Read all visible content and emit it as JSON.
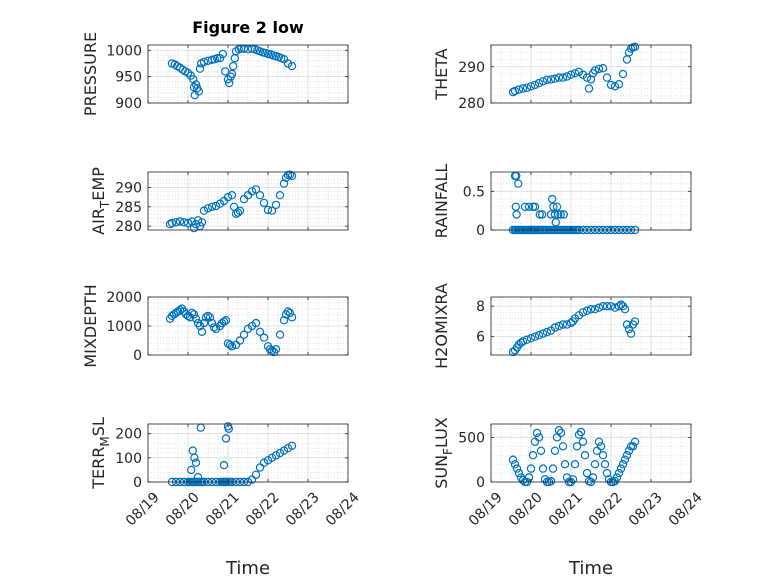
{
  "chart_data": [
    {
      "type": "scatter",
      "title": "Figure 2 low",
      "ylabel": "PRESSURE",
      "ylim": [
        900,
        1010
      ],
      "yticks": [
        900,
        950,
        1000
      ],
      "yticklabels": [
        "900",
        "950",
        "1000"
      ],
      "xlim": [
        0,
        5
      ],
      "xticks": [
        0,
        1,
        2,
        3,
        4,
        5
      ],
      "xticklabels": [
        "08/19",
        "08/20",
        "08/21",
        "08/22",
        "08/23",
        "08/24"
      ],
      "show_xticklabels": false,
      "xlabel": "",
      "grid": true,
      "color": "#0072BD",
      "x": [
        0.6,
        0.67,
        0.73,
        0.8,
        0.87,
        0.93,
        1.0,
        1.07,
        1.13,
        1.15,
        1.17,
        1.2,
        1.23,
        1.27,
        1.3,
        1.33,
        1.4,
        1.5,
        1.6,
        1.67,
        1.73,
        1.8,
        1.87,
        1.93,
        2.0,
        2.03,
        2.07,
        2.1,
        2.13,
        2.17,
        2.2,
        2.27,
        2.33,
        2.4,
        2.5,
        2.6,
        2.67,
        2.73,
        2.8,
        2.87,
        2.93,
        3.0,
        3.07,
        3.13,
        3.2,
        3.27,
        3.33,
        3.4,
        3.5,
        3.6
      ],
      "y": [
        975,
        973,
        970,
        967,
        963,
        960,
        957,
        952,
        945,
        930,
        915,
        935,
        928,
        922,
        965,
        975,
        978,
        980,
        982,
        983,
        985,
        985,
        993,
        960,
        945,
        938,
        950,
        955,
        970,
        985,
        998,
        1002,
        1003,
        1003,
        1002,
        1003,
        1002,
        1000,
        998,
        996,
        995,
        993,
        992,
        990,
        989,
        987,
        985,
        983,
        975,
        970
      ]
    },
    {
      "type": "scatter",
      "title": "",
      "ylabel": "THETA",
      "ylim": [
        280,
        296
      ],
      "yticks": [
        280,
        290
      ],
      "yticklabels": [
        "280",
        "290"
      ],
      "xlim": [
        0,
        5
      ],
      "xticks": [
        0,
        1,
        2,
        3,
        4,
        5
      ],
      "xticklabels": [
        "08/19",
        "08/20",
        "08/21",
        "08/22",
        "08/23",
        "08/24"
      ],
      "show_xticklabels": false,
      "xlabel": "",
      "grid": true,
      "color": "#0072BD",
      "x": [
        0.55,
        0.6,
        0.7,
        0.8,
        0.9,
        1.0,
        1.1,
        1.2,
        1.3,
        1.4,
        1.5,
        1.6,
        1.7,
        1.8,
        1.9,
        2.0,
        2.1,
        2.2,
        2.3,
        2.4,
        2.45,
        2.5,
        2.55,
        2.6,
        2.7,
        2.8,
        2.9,
        3.0,
        3.1,
        3.2,
        3.3,
        3.4,
        3.45,
        3.5,
        3.55,
        3.6
      ],
      "y": [
        283,
        283.3,
        283.7,
        284,
        284.2,
        284.6,
        285,
        285.5,
        286,
        286.4,
        286.5,
        286.7,
        287,
        287,
        287.3,
        287.8,
        288.2,
        288.6,
        287.8,
        287,
        284,
        286.5,
        288.2,
        289,
        289.4,
        289.6,
        287,
        285,
        284.6,
        285.2,
        288,
        292,
        294,
        295,
        295.3,
        295.5
      ]
    },
    {
      "type": "scatter",
      "title": "",
      "ylabel": "AIR_TEMP",
      "ylabel_parts": [
        "AIR",
        "T",
        "EMP"
      ],
      "ylim": [
        279,
        294
      ],
      "yticks": [
        280,
        285,
        290
      ],
      "yticklabels": [
        "280",
        "285",
        "290"
      ],
      "xlim": [
        0,
        5
      ],
      "xticks": [
        0,
        1,
        2,
        3,
        4,
        5
      ],
      "xticklabels": [
        "08/19",
        "08/20",
        "08/21",
        "08/22",
        "08/23",
        "08/24"
      ],
      "show_xticklabels": false,
      "xlabel": "",
      "grid": true,
      "color": "#0072BD",
      "x": [
        0.55,
        0.6,
        0.7,
        0.8,
        0.9,
        1.0,
        1.1,
        1.15,
        1.2,
        1.25,
        1.3,
        1.35,
        1.4,
        1.5,
        1.6,
        1.7,
        1.8,
        1.9,
        2.0,
        2.1,
        2.15,
        2.2,
        2.25,
        2.3,
        2.4,
        2.5,
        2.6,
        2.7,
        2.8,
        2.9,
        3.0,
        3.1,
        3.2,
        3.3,
        3.4,
        3.45,
        3.5,
        3.55,
        3.6
      ],
      "y": [
        280.5,
        280.8,
        281,
        281.2,
        281,
        280.8,
        281.2,
        279.5,
        280.5,
        281.5,
        280,
        281,
        284,
        284.6,
        285,
        285.2,
        285.8,
        286.5,
        287.5,
        288,
        285,
        283.2,
        283.5,
        284,
        287,
        288,
        289,
        289.5,
        288,
        286,
        284.2,
        284,
        285.5,
        288,
        291,
        292.5,
        293.2,
        293.3,
        293
      ]
    },
    {
      "type": "scatter",
      "title": "",
      "ylabel": "RAINFALL",
      "ylim": [
        0,
        0.75
      ],
      "yticks": [
        0,
        0.5
      ],
      "yticklabels": [
        "0",
        "0.5"
      ],
      "xlim": [
        0,
        5
      ],
      "xticks": [
        0,
        1,
        2,
        3,
        4,
        5
      ],
      "xticklabels": [
        "08/19",
        "08/20",
        "08/21",
        "08/22",
        "08/23",
        "08/24"
      ],
      "show_xticklabels": false,
      "xlabel": "",
      "grid": true,
      "color": "#0072BD",
      "x": [
        0.55,
        0.6,
        0.63,
        0.67,
        0.7,
        0.73,
        0.76,
        0.8,
        0.84,
        0.88,
        0.92,
        0.96,
        1.0,
        1.02,
        1.05,
        1.08,
        1.1,
        1.14,
        1.18,
        1.2,
        1.24,
        1.28,
        1.3,
        1.35,
        1.4,
        1.45,
        1.5,
        1.55,
        1.6,
        1.65,
        1.7,
        1.75,
        1.8,
        1.85,
        1.9,
        1.95,
        2.0,
        2.05,
        2.1,
        2.15,
        2.2,
        2.3,
        2.4,
        2.5,
        2.6,
        2.7,
        2.8,
        2.9,
        3.0,
        3.1,
        3.2,
        3.3,
        3.4,
        3.5,
        3.6,
        0.6,
        0.63,
        0.68,
        0.62,
        0.64,
        0.85,
        0.95,
        1.05,
        1.1,
        1.22,
        1.28,
        1.5,
        1.53,
        1.56,
        1.6,
        1.62,
        1.65,
        1.68,
        1.74,
        1.82
      ],
      "y": [
        0,
        0,
        0,
        0,
        0,
        0,
        0,
        0,
        0,
        0,
        0,
        0,
        0,
        0,
        0,
        0,
        0,
        0,
        0,
        0,
        0,
        0,
        0,
        0,
        0,
        0,
        0,
        0,
        0,
        0,
        0,
        0,
        0,
        0,
        0,
        0,
        0,
        0,
        0,
        0,
        0,
        0,
        0,
        0,
        0,
        0,
        0,
        0,
        0,
        0,
        0,
        0,
        0,
        0,
        0,
        0.7,
        0.7,
        0.6,
        0.3,
        0.2,
        0.3,
        0.3,
        0.3,
        0.3,
        0.2,
        0.2,
        0.2,
        0.4,
        0.3,
        0.2,
        0.1,
        0.3,
        0.2,
        0.2,
        0.2
      ]
    },
    {
      "type": "scatter",
      "title": "",
      "ylabel": "MIXDEPTH",
      "ylim": [
        0,
        2000
      ],
      "yticks": [
        0,
        1000,
        2000
      ],
      "yticklabels": [
        "0",
        "1000",
        "2000"
      ],
      "xlim": [
        0,
        5
      ],
      "xticks": [
        0,
        1,
        2,
        3,
        4,
        5
      ],
      "xticklabels": [
        "08/19",
        "08/20",
        "08/21",
        "08/22",
        "08/23",
        "08/24"
      ],
      "show_xticklabels": false,
      "xlabel": "",
      "grid": true,
      "color": "#0072BD",
      "x": [
        0.55,
        0.6,
        0.65,
        0.7,
        0.75,
        0.8,
        0.85,
        0.9,
        0.95,
        1.0,
        1.05,
        1.1,
        1.15,
        1.2,
        1.25,
        1.3,
        1.35,
        1.4,
        1.45,
        1.5,
        1.55,
        1.6,
        1.65,
        1.7,
        1.8,
        1.85,
        1.9,
        1.95,
        2.0,
        2.05,
        2.1,
        2.2,
        2.3,
        2.4,
        2.5,
        2.6,
        2.7,
        2.8,
        2.9,
        3.0,
        3.05,
        3.1,
        3.15,
        3.2,
        3.3,
        3.4,
        3.45,
        3.5,
        3.55,
        3.6
      ],
      "y": [
        1250,
        1350,
        1400,
        1450,
        1500,
        1550,
        1600,
        1500,
        1400,
        1350,
        1300,
        1450,
        1400,
        1250,
        1100,
        1000,
        800,
        1100,
        1300,
        1350,
        1300,
        1100,
        950,
        900,
        1000,
        1100,
        1150,
        1200,
        400,
        350,
        300,
        350,
        500,
        700,
        900,
        1000,
        1100,
        800,
        600,
        300,
        200,
        150,
        100,
        200,
        700,
        1200,
        1400,
        1500,
        1450,
        1300
      ]
    },
    {
      "type": "scatter",
      "title": "",
      "ylabel": "H2OMIXRA",
      "ylim": [
        4.8,
        8.6
      ],
      "yticks": [
        6,
        8
      ],
      "yticklabels": [
        "6",
        "8"
      ],
      "xlim": [
        0,
        5
      ],
      "xticks": [
        0,
        1,
        2,
        3,
        4,
        5
      ],
      "xticklabels": [
        "08/19",
        "08/20",
        "08/21",
        "08/22",
        "08/23",
        "08/24"
      ],
      "show_xticklabels": false,
      "xlabel": "",
      "grid": true,
      "color": "#0072BD",
      "x": [
        0.55,
        0.6,
        0.65,
        0.7,
        0.75,
        0.8,
        0.9,
        1.0,
        1.1,
        1.2,
        1.3,
        1.4,
        1.5,
        1.6,
        1.7,
        1.8,
        1.9,
        2.0,
        2.05,
        2.1,
        2.2,
        2.3,
        2.4,
        2.5,
        2.6,
        2.7,
        2.8,
        2.9,
        3.0,
        3.1,
        3.2,
        3.25,
        3.3,
        3.35,
        3.4,
        3.45,
        3.5,
        3.55,
        3.6
      ],
      "y": [
        5,
        5.1,
        5.3,
        5.5,
        5.6,
        5.7,
        5.8,
        5.9,
        6.0,
        6.1,
        6.2,
        6.3,
        6.4,
        6.6,
        6.7,
        6.8,
        6.8,
        6.9,
        7.0,
        7.2,
        7.4,
        7.6,
        7.7,
        7.8,
        7.8,
        7.9,
        8.0,
        8.0,
        8.0,
        7.9,
        8.0,
        8.1,
        8.0,
        7.8,
        6.8,
        6.5,
        6.2,
        6.8,
        7.0
      ]
    },
    {
      "type": "scatter",
      "title": "",
      "ylabel": "TERR_MSL",
      "ylabel_parts": [
        "TERR",
        "M",
        "SL"
      ],
      "ylim": [
        0,
        240
      ],
      "yticks": [
        0,
        100,
        200
      ],
      "yticklabels": [
        "0",
        "100",
        "200"
      ],
      "xlim": [
        0,
        5
      ],
      "xticks": [
        0,
        1,
        2,
        3,
        4,
        5
      ],
      "xticklabels": [
        "08/19",
        "08/20",
        "08/21",
        "08/22",
        "08/23",
        "08/24"
      ],
      "show_xticklabels": true,
      "xlabel": "Time",
      "grid": true,
      "color": "#0072BD",
      "x": [
        0.6,
        0.7,
        0.8,
        0.9,
        1.0,
        1.05,
        1.1,
        1.12,
        1.15,
        1.2,
        1.25,
        1.3,
        1.35,
        1.4,
        1.5,
        1.6,
        1.7,
        1.8,
        1.85,
        1.88,
        1.9,
        1.93,
        1.96,
        2.0,
        2.05,
        2.1,
        2.2,
        2.3,
        2.4,
        2.5,
        2.6,
        2.7,
        2.8,
        2.9,
        3.0,
        3.1,
        3.2,
        3.3,
        3.4,
        3.5,
        3.6,
        1.08,
        1.12,
        1.16,
        1.2,
        1.25,
        1.32,
        1.9,
        1.95,
        2.0,
        2.02
      ],
      "y": [
        0,
        0,
        0,
        0,
        0,
        0,
        0,
        0,
        0,
        0,
        0,
        0,
        0,
        0,
        0,
        0,
        0,
        0,
        0,
        0,
        0,
        0,
        0,
        0,
        0,
        0,
        0,
        0,
        0,
        0,
        10,
        30,
        60,
        80,
        90,
        100,
        110,
        120,
        130,
        140,
        150,
        50,
        130,
        100,
        80,
        20,
        225,
        70,
        180,
        230,
        220
      ]
    },
    {
      "type": "scatter",
      "title": "",
      "ylabel": "SUN_FLUX",
      "ylabel_parts": [
        "SUN",
        "F",
        "LUX"
      ],
      "ylim": [
        0,
        650
      ],
      "yticks": [
        0,
        500
      ],
      "yticklabels": [
        "0",
        "500"
      ],
      "xlim": [
        0,
        5
      ],
      "xticks": [
        0,
        1,
        2,
        3,
        4,
        5
      ],
      "xticklabels": [
        "08/19",
        "08/20",
        "08/21",
        "08/22",
        "08/23",
        "08/24"
      ],
      "show_xticklabels": true,
      "xlabel": "Time",
      "grid": true,
      "color": "#0072BD",
      "x": [
        0.55,
        0.6,
        0.65,
        0.7,
        0.75,
        0.8,
        0.85,
        0.9,
        0.95,
        1.0,
        1.05,
        1.1,
        1.15,
        1.2,
        1.25,
        1.3,
        1.35,
        1.4,
        1.45,
        1.5,
        1.55,
        1.6,
        1.65,
        1.7,
        1.75,
        1.8,
        1.85,
        1.9,
        1.95,
        2.0,
        2.05,
        2.1,
        2.15,
        2.2,
        2.25,
        2.3,
        2.35,
        2.4,
        2.45,
        2.5,
        2.55,
        2.6,
        2.65,
        2.7,
        2.75,
        2.8,
        2.85,
        2.9,
        2.95,
        3.0,
        3.05,
        3.1,
        3.15,
        3.2,
        3.25,
        3.3,
        3.35,
        3.4,
        3.45,
        3.5,
        3.55,
        3.6
      ],
      "y": [
        250,
        200,
        150,
        100,
        50,
        20,
        0,
        0,
        50,
        150,
        300,
        450,
        550,
        500,
        350,
        150,
        30,
        0,
        0,
        10,
        150,
        350,
        500,
        580,
        550,
        400,
        200,
        50,
        0,
        0,
        30,
        200,
        400,
        530,
        560,
        450,
        300,
        100,
        10,
        0,
        50,
        200,
        350,
        450,
        400,
        300,
        200,
        100,
        30,
        0,
        0,
        10,
        50,
        100,
        150,
        200,
        250,
        300,
        350,
        400,
        400,
        450
      ]
    }
  ]
}
